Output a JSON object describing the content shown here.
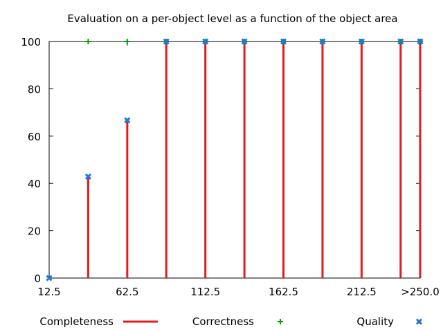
{
  "chart_data": {
    "type": "bar",
    "title": "Evaluation on a per-object level as a function of the object area",
    "xlabel": "",
    "ylabel": "",
    "x": [
      12.5,
      37.5,
      62.5,
      87.5,
      112.5,
      137.5,
      162.5,
      187.5,
      212.5,
      237.5,
      250
    ],
    "x_tick_values": [
      12.5,
      62.5,
      112.5,
      162.5,
      212.5,
      250
    ],
    "x_tick_labels": [
      "12.5",
      "62.5",
      "112.5",
      "162.5",
      "212.5",
      ">250.0"
    ],
    "xlim": [
      12.5,
      250
    ],
    "ylim": [
      0,
      100
    ],
    "y_ticks": [
      0,
      20,
      40,
      60,
      80,
      100
    ],
    "grid": false,
    "legend_position": "bottom",
    "series": [
      {
        "name": "Completeness",
        "style": "impulses",
        "color": "#e41a1c",
        "values": [
          0,
          42.9,
          66.7,
          100,
          100,
          100,
          100,
          100,
          100,
          100,
          100
        ]
      },
      {
        "name": "Correctness",
        "style": "points-plus",
        "color": "#00a000",
        "values": [
          null,
          100,
          100,
          100,
          100,
          100,
          100,
          100,
          100,
          100,
          100
        ]
      },
      {
        "name": "Quality",
        "style": "points-x",
        "color": "#1e78d8",
        "values": [
          0,
          42.9,
          66.7,
          100,
          100,
          100,
          100,
          100,
          100,
          100,
          100
        ]
      }
    ]
  }
}
